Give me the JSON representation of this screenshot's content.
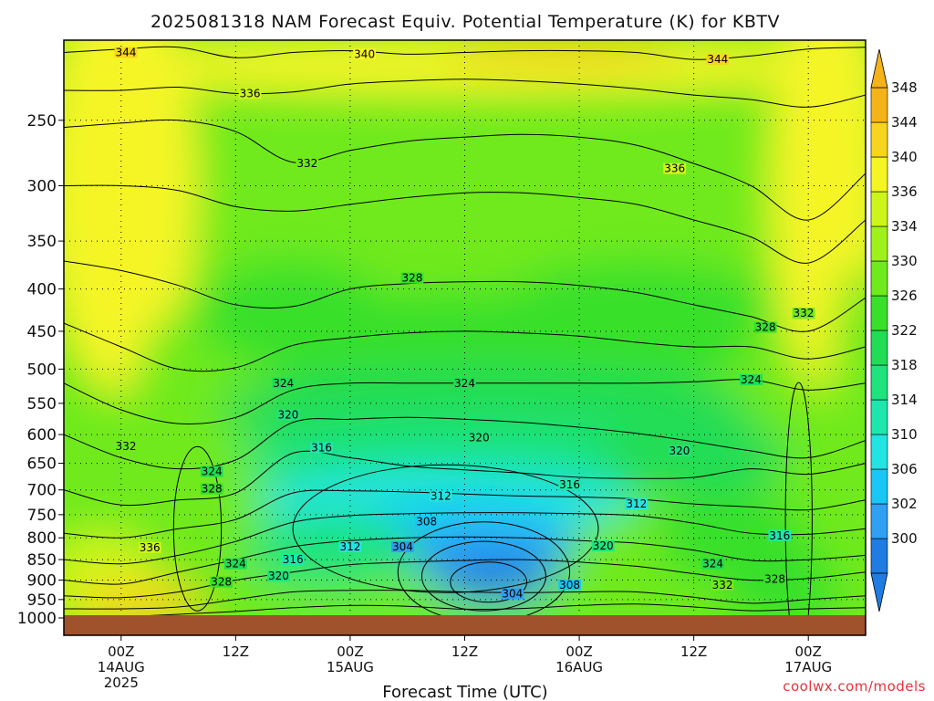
{
  "chart_data": {
    "type": "heatmap",
    "title": "2025081318 NAM Forecast Equiv. Potential Temperature (K) for KBTV",
    "xlabel": "Forecast Time (UTC)",
    "ylabel": "",
    "y_scale": "log",
    "y_inverted": true,
    "ylim": [
      1000,
      200
    ],
    "y_ticks": [
      250,
      300,
      350,
      400,
      450,
      500,
      550,
      600,
      650,
      700,
      750,
      800,
      850,
      900,
      950,
      1000
    ],
    "x_ticks": [
      {
        "hour": 6,
        "lines": [
          "00Z",
          "14AUG",
          "2025"
        ]
      },
      {
        "hour": 18,
        "lines": [
          "12Z"
        ]
      },
      {
        "hour": 30,
        "lines": [
          "00Z",
          "15AUG"
        ]
      },
      {
        "hour": 42,
        "lines": [
          "12Z"
        ]
      },
      {
        "hour": 54,
        "lines": [
          "00Z",
          "16AUG"
        ]
      },
      {
        "hour": 66,
        "lines": [
          "12Z"
        ]
      },
      {
        "hour": 78,
        "lines": [
          "00Z",
          "17AUG"
        ]
      }
    ],
    "xlim": [
      0,
      84
    ],
    "grid": true,
    "colorbar": {
      "min": 298,
      "max": 350,
      "labels": [
        300,
        302,
        306,
        310,
        314,
        318,
        322,
        326,
        330,
        334,
        336,
        340,
        344,
        348
      ],
      "bins": [
        {
          "lo": 298,
          "hi": 302,
          "color": "#1e7ce3"
        },
        {
          "lo": 302,
          "hi": 306,
          "color": "#2fa0f2"
        },
        {
          "lo": 306,
          "hi": 310,
          "color": "#19c6f5"
        },
        {
          "lo": 310,
          "hi": 314,
          "color": "#22e4e2"
        },
        {
          "lo": 314,
          "hi": 318,
          "color": "#1ee7ad"
        },
        {
          "lo": 318,
          "hi": 322,
          "color": "#1fe37d"
        },
        {
          "lo": 322,
          "hi": 326,
          "color": "#20dd55"
        },
        {
          "lo": 326,
          "hi": 330,
          "color": "#38e02a"
        },
        {
          "lo": 330,
          "hi": 334,
          "color": "#6fea1d"
        },
        {
          "lo": 334,
          "hi": 336,
          "color": "#9ef21a"
        },
        {
          "lo": 336,
          "hi": 340,
          "color": "#cdf51c"
        },
        {
          "lo": 340,
          "hi": 344,
          "color": "#f5f525"
        },
        {
          "lo": 344,
          "hi": 348,
          "color": "#f7d51e"
        },
        {
          "lo": 348,
          "hi": 352,
          "color": "#f5b31a"
        }
      ]
    },
    "contour_labels": [
      {
        "hour": 6.5,
        "p": 207,
        "value": 344
      },
      {
        "hour": 31.5,
        "p": 208,
        "value": 340
      },
      {
        "hour": 68.5,
        "p": 211,
        "value": 344
      },
      {
        "hour": 19.5,
        "p": 232,
        "value": 336
      },
      {
        "hour": 25.5,
        "p": 282,
        "value": 332
      },
      {
        "hour": 64,
        "p": 286,
        "value": 336
      },
      {
        "hour": 36.5,
        "p": 388,
        "value": 328
      },
      {
        "hour": 73.5,
        "p": 445,
        "value": 328
      },
      {
        "hour": 77.5,
        "p": 428,
        "value": 332
      },
      {
        "hour": 23,
        "p": 520,
        "value": 324
      },
      {
        "hour": 42,
        "p": 520,
        "value": 324
      },
      {
        "hour": 72,
        "p": 515,
        "value": 324
      },
      {
        "hour": 23.5,
        "p": 568,
        "value": 320
      },
      {
        "hour": 43.5,
        "p": 605,
        "value": 320
      },
      {
        "hour": 64.5,
        "p": 628,
        "value": 320
      },
      {
        "hour": 6.5,
        "p": 620,
        "value": 332
      },
      {
        "hour": 15.5,
        "p": 665,
        "value": 324
      },
      {
        "hour": 15.5,
        "p": 698,
        "value": 328
      },
      {
        "hour": 27,
        "p": 622,
        "value": 316
      },
      {
        "hour": 53,
        "p": 690,
        "value": 316
      },
      {
        "hour": 39.5,
        "p": 712,
        "value": 312
      },
      {
        "hour": 60,
        "p": 728,
        "value": 312
      },
      {
        "hour": 38,
        "p": 765,
        "value": 308
      },
      {
        "hour": 30,
        "p": 820,
        "value": 312
      },
      {
        "hour": 35.5,
        "p": 820,
        "value": 304
      },
      {
        "hour": 9,
        "p": 822,
        "value": 336
      },
      {
        "hour": 18,
        "p": 860,
        "value": 324
      },
      {
        "hour": 24,
        "p": 850,
        "value": 316
      },
      {
        "hour": 22.5,
        "p": 890,
        "value": 320
      },
      {
        "hour": 16.5,
        "p": 905,
        "value": 328
      },
      {
        "hour": 56.5,
        "p": 818,
        "value": 320
      },
      {
        "hour": 68,
        "p": 860,
        "value": 324
      },
      {
        "hour": 75,
        "p": 795,
        "value": 316
      },
      {
        "hour": 47,
        "p": 935,
        "value": 304
      },
      {
        "hour": 53,
        "p": 912,
        "value": 308
      },
      {
        "hour": 69,
        "p": 912,
        "value": 332
      },
      {
        "hour": 74.5,
        "p": 898,
        "value": 328
      }
    ],
    "annotation": "coolwx.com/models"
  }
}
